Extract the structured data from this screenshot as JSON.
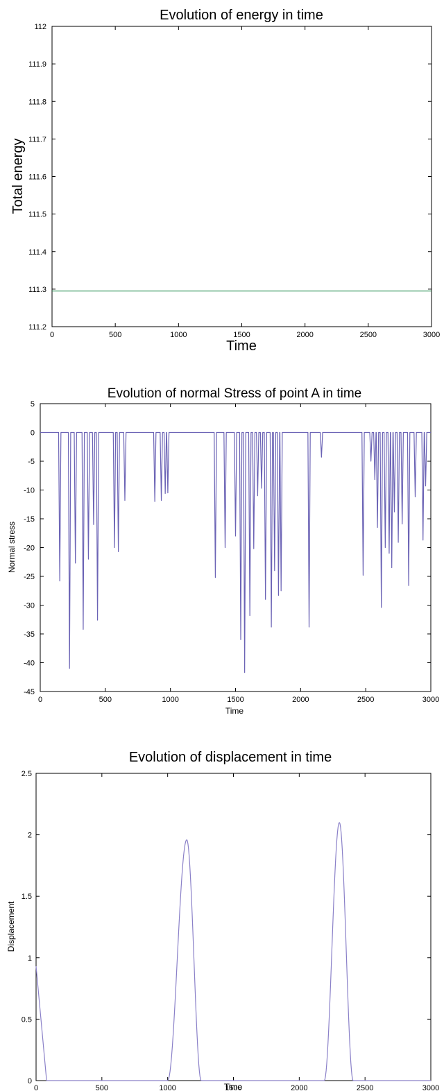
{
  "chart_data": [
    {
      "type": "line",
      "title": "Evolution of energy in time",
      "xlabel": "Time",
      "ylabel": "Total energy",
      "xlim": [
        0,
        3000
      ],
      "ylim": [
        111.2,
        112
      ],
      "xticks": [
        0,
        500,
        1000,
        1500,
        2000,
        2500,
        3000
      ],
      "yticks": [
        111.2,
        111.3,
        111.4,
        111.5,
        111.6,
        111.7,
        111.8,
        111.9,
        112
      ],
      "ytick_labels": [
        "111.2",
        "111.3",
        "111.4",
        "111.5",
        "111.6",
        "111.7",
        "111.8",
        "111.9",
        "112"
      ],
      "grid": false,
      "line_color": "#1f8a4c",
      "series": [
        {
          "x": [
            0,
            3000
          ],
          "y": [
            111.295,
            111.295
          ]
        }
      ]
    },
    {
      "type": "line",
      "title": "Evolution of normal Stress of point A in time",
      "xlabel": "Time",
      "ylabel": "Normal stress",
      "xlim": [
        0,
        3000
      ],
      "ylim": [
        -45,
        5
      ],
      "xticks": [
        0,
        500,
        1000,
        1500,
        2000,
        2500,
        3000
      ],
      "yticks": [
        -45,
        -40,
        -35,
        -30,
        -25,
        -20,
        -15,
        -10,
        -5,
        0,
        5
      ],
      "ytick_labels": [
        "-45",
        "-40",
        "-35",
        "-30",
        "-25",
        "-20",
        "-15",
        "-10",
        "-5",
        "0",
        "5"
      ],
      "grid": false,
      "line_color": "#6b63b5",
      "spikes": [
        [
          150,
          -25.8
        ],
        [
          225,
          -41
        ],
        [
          270,
          -22.7
        ],
        [
          330,
          -34.2
        ],
        [
          370,
          -22
        ],
        [
          410,
          -16
        ],
        [
          440,
          -32.6
        ],
        [
          570,
          -20
        ],
        [
          600,
          -20.7
        ],
        [
          650,
          -11.8
        ],
        [
          880,
          -12
        ],
        [
          930,
          -11.8
        ],
        [
          960,
          -10.6
        ],
        [
          980,
          -10.5
        ],
        [
          1345,
          -25.2
        ],
        [
          1420,
          -20
        ],
        [
          1500,
          -18
        ],
        [
          1540,
          -36
        ],
        [
          1570,
          -41.7
        ],
        [
          1610,
          -31.8
        ],
        [
          1640,
          -20.2
        ],
        [
          1670,
          -11
        ],
        [
          1700,
          -9.7
        ],
        [
          1730,
          -29
        ],
        [
          1775,
          -33.8
        ],
        [
          1800,
          -24
        ],
        [
          1830,
          -28.3
        ],
        [
          1850,
          -27.5
        ],
        [
          2065,
          -33.8
        ],
        [
          2160,
          -4.3
        ],
        [
          2480,
          -24.8
        ],
        [
          2540,
          -5
        ],
        [
          2570,
          -8.2
        ],
        [
          2590,
          -16.5
        ],
        [
          2620,
          -30.4
        ],
        [
          2650,
          -20
        ],
        [
          2680,
          -21
        ],
        [
          2700,
          -23.5
        ],
        [
          2720,
          -13.8
        ],
        [
          2750,
          -19.1
        ],
        [
          2780,
          -15.9
        ],
        [
          2830,
          -26.6
        ],
        [
          2880,
          -11.2
        ],
        [
          2940,
          -18.7
        ],
        [
          2960,
          -9.3
        ]
      ]
    },
    {
      "type": "line",
      "title": "Evolution of displacement in time",
      "xlabel": "Time",
      "ylabel": "Displacement",
      "xlim": [
        0,
        3000
      ],
      "ylim": [
        0,
        2.5
      ],
      "xticks": [
        0,
        500,
        1000,
        1500,
        2000,
        2500,
        3000
      ],
      "yticks": [
        0,
        0.5,
        1,
        1.5,
        2,
        2.5
      ],
      "ytick_labels": [
        "0",
        "0.5",
        "1",
        "1.5",
        "2",
        "2.5"
      ],
      "grid": false,
      "line_color": "#8a80c8",
      "initial_peak": {
        "start": 0,
        "end": 80,
        "value": 0.93
      },
      "pulses": [
        {
          "start": 1000,
          "peak": 1145,
          "end": 1255,
          "value": 1.96
        },
        {
          "start": 2190,
          "peak": 2305,
          "end": 2410,
          "value": 2.1
        }
      ]
    }
  ]
}
